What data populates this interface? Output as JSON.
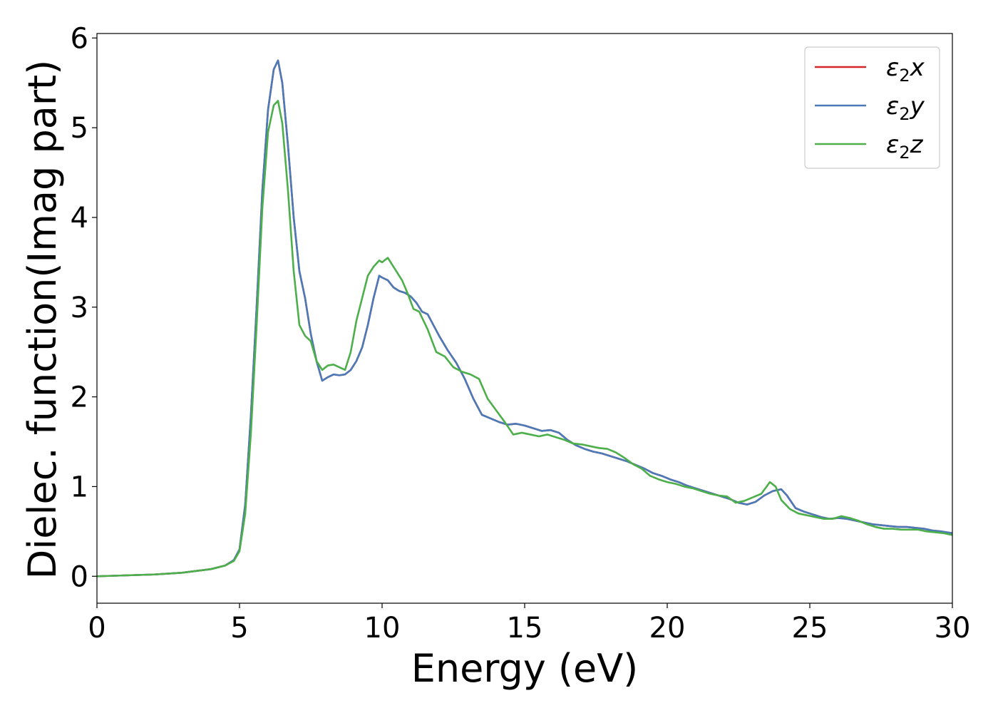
{
  "chart_data": {
    "type": "line",
    "title": "",
    "xlabel": "Energy (eV)",
    "ylabel": "Dielec. function(Imag part)",
    "xlim": [
      0,
      30
    ],
    "ylim": [
      -0.3,
      6.05
    ],
    "xticks": [
      0,
      5,
      10,
      15,
      20,
      25,
      30
    ],
    "yticks": [
      0,
      1,
      2,
      3,
      4,
      5,
      6
    ],
    "xtick_labels": [
      "0",
      "5",
      "10",
      "15",
      "20",
      "25",
      "30"
    ],
    "ytick_labels": [
      "0",
      "1",
      "2",
      "3",
      "4",
      "5",
      "6"
    ],
    "grid": false,
    "legend_position": "top-right",
    "series": [
      {
        "name": "ε₂x",
        "name_base": "ε",
        "name_sub": "2",
        "name_var": "x",
        "color": "#d62728",
        "x": [
          0,
          1,
          2,
          3,
          4,
          4.5,
          4.8,
          5.0,
          5.2,
          5.4,
          5.6,
          5.8,
          6.0,
          6.2,
          6.35,
          6.5,
          6.7,
          6.9,
          7.1,
          7.3,
          7.5,
          7.7,
          7.9,
          8.1,
          8.3,
          8.5,
          8.7,
          8.9,
          9.1,
          9.3,
          9.5,
          9.7,
          9.9,
          10.0,
          10.2,
          10.4,
          10.6,
          10.8,
          11.0,
          11.2,
          11.4,
          11.6,
          11.8,
          12.0,
          12.3,
          12.6,
          12.9,
          13.2,
          13.5,
          13.8,
          14.1,
          14.4,
          14.7,
          15.0,
          15.3,
          15.6,
          15.9,
          16.2,
          16.5,
          16.8,
          17.1,
          17.4,
          17.7,
          18.0,
          18.3,
          18.6,
          18.9,
          19.2,
          19.5,
          19.8,
          20.1,
          20.4,
          20.7,
          21.0,
          21.3,
          21.6,
          21.9,
          22.2,
          22.5,
          22.8,
          23.1,
          23.4,
          23.7,
          24.0,
          24.2,
          24.5,
          24.8,
          25.1,
          25.4,
          25.7,
          26.0,
          26.3,
          26.6,
          26.9,
          27.2,
          27.5,
          27.8,
          28.1,
          28.4,
          28.7,
          29.0,
          29.3,
          29.6,
          30.0
        ],
        "y": [
          0.0,
          0.01,
          0.02,
          0.04,
          0.08,
          0.12,
          0.18,
          0.3,
          0.8,
          1.8,
          3.0,
          4.3,
          5.2,
          5.65,
          5.75,
          5.5,
          4.8,
          4.0,
          3.4,
          3.1,
          2.7,
          2.4,
          2.18,
          2.22,
          2.25,
          2.24,
          2.25,
          2.3,
          2.4,
          2.55,
          2.8,
          3.1,
          3.35,
          3.33,
          3.3,
          3.22,
          3.18,
          3.16,
          3.12,
          3.05,
          2.95,
          2.92,
          2.8,
          2.68,
          2.52,
          2.38,
          2.2,
          1.98,
          1.8,
          1.76,
          1.72,
          1.69,
          1.7,
          1.68,
          1.65,
          1.62,
          1.63,
          1.6,
          1.52,
          1.46,
          1.42,
          1.39,
          1.37,
          1.34,
          1.31,
          1.28,
          1.24,
          1.2,
          1.15,
          1.12,
          1.08,
          1.05,
          1.01,
          0.98,
          0.95,
          0.92,
          0.89,
          0.86,
          0.82,
          0.8,
          0.83,
          0.9,
          0.95,
          0.97,
          0.9,
          0.76,
          0.72,
          0.69,
          0.66,
          0.64,
          0.65,
          0.64,
          0.62,
          0.6,
          0.58,
          0.57,
          0.56,
          0.55,
          0.55,
          0.54,
          0.53,
          0.51,
          0.5,
          0.48
        ]
      },
      {
        "name": "ε₂y",
        "name_base": "ε",
        "name_sub": "2",
        "name_var": "y",
        "color": "#4a7ab8",
        "x": [
          0,
          1,
          2,
          3,
          4,
          4.5,
          4.8,
          5.0,
          5.2,
          5.4,
          5.6,
          5.8,
          6.0,
          6.2,
          6.35,
          6.5,
          6.7,
          6.9,
          7.1,
          7.3,
          7.5,
          7.7,
          7.9,
          8.1,
          8.3,
          8.5,
          8.7,
          8.9,
          9.1,
          9.3,
          9.5,
          9.7,
          9.9,
          10.0,
          10.2,
          10.4,
          10.6,
          10.8,
          11.0,
          11.2,
          11.4,
          11.6,
          11.8,
          12.0,
          12.3,
          12.6,
          12.9,
          13.2,
          13.5,
          13.8,
          14.1,
          14.4,
          14.7,
          15.0,
          15.3,
          15.6,
          15.9,
          16.2,
          16.5,
          16.8,
          17.1,
          17.4,
          17.7,
          18.0,
          18.3,
          18.6,
          18.9,
          19.2,
          19.5,
          19.8,
          20.1,
          20.4,
          20.7,
          21.0,
          21.3,
          21.6,
          21.9,
          22.2,
          22.5,
          22.8,
          23.1,
          23.4,
          23.7,
          24.0,
          24.2,
          24.5,
          24.8,
          25.1,
          25.4,
          25.7,
          26.0,
          26.3,
          26.6,
          26.9,
          27.2,
          27.5,
          27.8,
          28.1,
          28.4,
          28.7,
          29.0,
          29.3,
          29.6,
          30.0
        ],
        "y": [
          0.0,
          0.01,
          0.02,
          0.04,
          0.08,
          0.12,
          0.18,
          0.3,
          0.8,
          1.8,
          3.0,
          4.3,
          5.2,
          5.65,
          5.75,
          5.5,
          4.8,
          4.0,
          3.4,
          3.1,
          2.7,
          2.4,
          2.18,
          2.22,
          2.25,
          2.24,
          2.25,
          2.3,
          2.4,
          2.55,
          2.8,
          3.1,
          3.35,
          3.33,
          3.3,
          3.22,
          3.18,
          3.16,
          3.12,
          3.05,
          2.95,
          2.92,
          2.8,
          2.68,
          2.52,
          2.38,
          2.2,
          1.98,
          1.8,
          1.76,
          1.72,
          1.69,
          1.7,
          1.68,
          1.65,
          1.62,
          1.63,
          1.6,
          1.52,
          1.46,
          1.42,
          1.39,
          1.37,
          1.34,
          1.31,
          1.28,
          1.24,
          1.2,
          1.15,
          1.12,
          1.08,
          1.05,
          1.01,
          0.98,
          0.95,
          0.92,
          0.89,
          0.86,
          0.82,
          0.8,
          0.83,
          0.9,
          0.95,
          0.97,
          0.9,
          0.76,
          0.72,
          0.69,
          0.66,
          0.64,
          0.65,
          0.64,
          0.62,
          0.6,
          0.58,
          0.57,
          0.56,
          0.55,
          0.55,
          0.54,
          0.53,
          0.51,
          0.5,
          0.48
        ]
      },
      {
        "name": "ε₂z",
        "name_base": "ε",
        "name_sub": "2",
        "name_var": "z",
        "color": "#4daf4a",
        "x": [
          0,
          1,
          2,
          3,
          4,
          4.5,
          4.8,
          5.0,
          5.2,
          5.4,
          5.6,
          5.8,
          6.0,
          6.2,
          6.35,
          6.5,
          6.7,
          6.9,
          7.1,
          7.3,
          7.5,
          7.7,
          7.9,
          8.1,
          8.3,
          8.5,
          8.7,
          8.9,
          9.1,
          9.3,
          9.5,
          9.7,
          9.9,
          10.0,
          10.2,
          10.3,
          10.5,
          10.7,
          10.9,
          11.1,
          11.3,
          11.6,
          11.9,
          12.2,
          12.5,
          12.8,
          13.1,
          13.4,
          13.7,
          14.0,
          14.3,
          14.6,
          14.9,
          15.2,
          15.5,
          15.8,
          16.1,
          16.4,
          16.7,
          17.0,
          17.3,
          17.6,
          17.9,
          18.2,
          18.5,
          18.8,
          19.1,
          19.4,
          19.7,
          20.0,
          20.3,
          20.6,
          20.9,
          21.2,
          21.5,
          21.8,
          22.1,
          22.4,
          22.7,
          23.0,
          23.3,
          23.6,
          23.8,
          24.0,
          24.3,
          24.6,
          24.9,
          25.2,
          25.5,
          25.8,
          26.1,
          26.4,
          26.7,
          27.0,
          27.3,
          27.6,
          27.9,
          28.2,
          28.5,
          28.8,
          29.1,
          29.4,
          29.7,
          30.0
        ],
        "y": [
          0.0,
          0.01,
          0.02,
          0.04,
          0.08,
          0.12,
          0.17,
          0.28,
          0.7,
          1.6,
          2.8,
          4.1,
          4.95,
          5.25,
          5.3,
          5.05,
          4.3,
          3.4,
          2.8,
          2.68,
          2.62,
          2.4,
          2.3,
          2.35,
          2.36,
          2.33,
          2.3,
          2.5,
          2.85,
          3.1,
          3.35,
          3.45,
          3.52,
          3.5,
          3.55,
          3.5,
          3.4,
          3.3,
          3.15,
          2.98,
          2.95,
          2.75,
          2.5,
          2.45,
          2.33,
          2.28,
          2.25,
          2.2,
          1.98,
          1.85,
          1.72,
          1.58,
          1.6,
          1.58,
          1.56,
          1.58,
          1.55,
          1.52,
          1.48,
          1.47,
          1.45,
          1.43,
          1.42,
          1.38,
          1.32,
          1.25,
          1.2,
          1.12,
          1.08,
          1.05,
          1.03,
          1.0,
          0.98,
          0.95,
          0.92,
          0.9,
          0.89,
          0.82,
          0.84,
          0.88,
          0.92,
          1.05,
          1.0,
          0.85,
          0.75,
          0.7,
          0.68,
          0.66,
          0.64,
          0.64,
          0.67,
          0.65,
          0.62,
          0.58,
          0.55,
          0.53,
          0.53,
          0.52,
          0.52,
          0.52,
          0.5,
          0.49,
          0.48,
          0.46
        ]
      }
    ]
  }
}
